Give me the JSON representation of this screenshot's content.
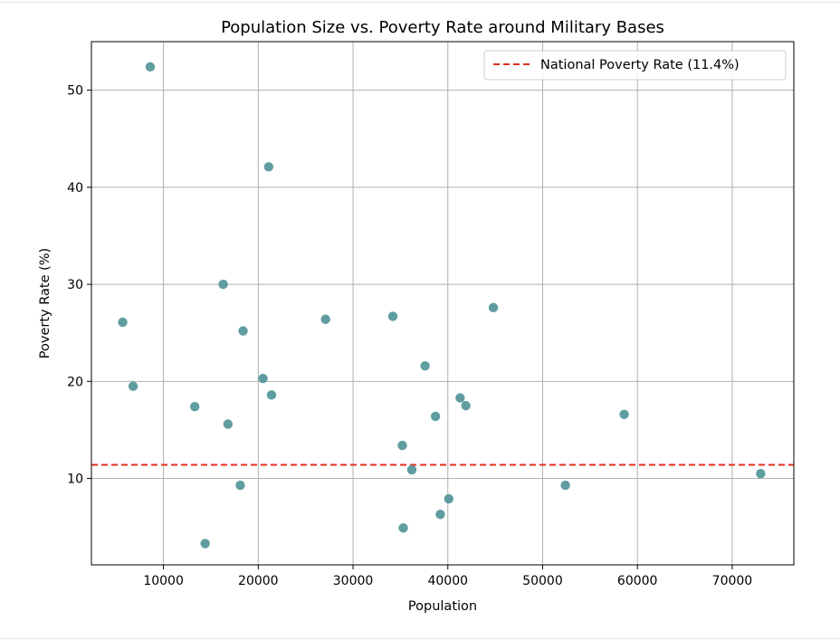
{
  "chart_data": {
    "type": "scatter",
    "title": "Population Size vs. Poverty Rate around Military Bases",
    "xlabel": "Population",
    "ylabel": "Poverty Rate (%)",
    "xlim": [
      2400,
      76500
    ],
    "ylim": [
      1.1,
      55.0
    ],
    "xticks": [
      10000,
      20000,
      30000,
      40000,
      50000,
      60000,
      70000
    ],
    "yticks": [
      10,
      20,
      30,
      40,
      50
    ],
    "grid": true,
    "legend_position": "top-right",
    "point_color": "#4a9093",
    "reference_line": {
      "label": "National Poverty Rate (11.4%)",
      "y": 11.4,
      "color": "#e0301e",
      "style": "dashed"
    },
    "points": [
      {
        "x": 5700,
        "y": 26.1
      },
      {
        "x": 6800,
        "y": 19.5
      },
      {
        "x": 8600,
        "y": 52.4
      },
      {
        "x": 13300,
        "y": 17.4
      },
      {
        "x": 14400,
        "y": 3.3
      },
      {
        "x": 16300,
        "y": 30.0
      },
      {
        "x": 16800,
        "y": 15.6
      },
      {
        "x": 18100,
        "y": 9.3
      },
      {
        "x": 18400,
        "y": 25.2
      },
      {
        "x": 20500,
        "y": 20.3
      },
      {
        "x": 21100,
        "y": 42.1
      },
      {
        "x": 21400,
        "y": 18.6
      },
      {
        "x": 27100,
        "y": 26.4
      },
      {
        "x": 34200,
        "y": 26.7
      },
      {
        "x": 35200,
        "y": 13.4
      },
      {
        "x": 35300,
        "y": 4.9
      },
      {
        "x": 36200,
        "y": 10.9
      },
      {
        "x": 37600,
        "y": 21.6
      },
      {
        "x": 38700,
        "y": 16.4
      },
      {
        "x": 39200,
        "y": 6.3
      },
      {
        "x": 40100,
        "y": 7.9
      },
      {
        "x": 41300,
        "y": 18.3
      },
      {
        "x": 41900,
        "y": 17.5
      },
      {
        "x": 44800,
        "y": 27.6
      },
      {
        "x": 52400,
        "y": 9.3
      },
      {
        "x": 58600,
        "y": 16.6
      },
      {
        "x": 73000,
        "y": 10.5
      }
    ]
  }
}
